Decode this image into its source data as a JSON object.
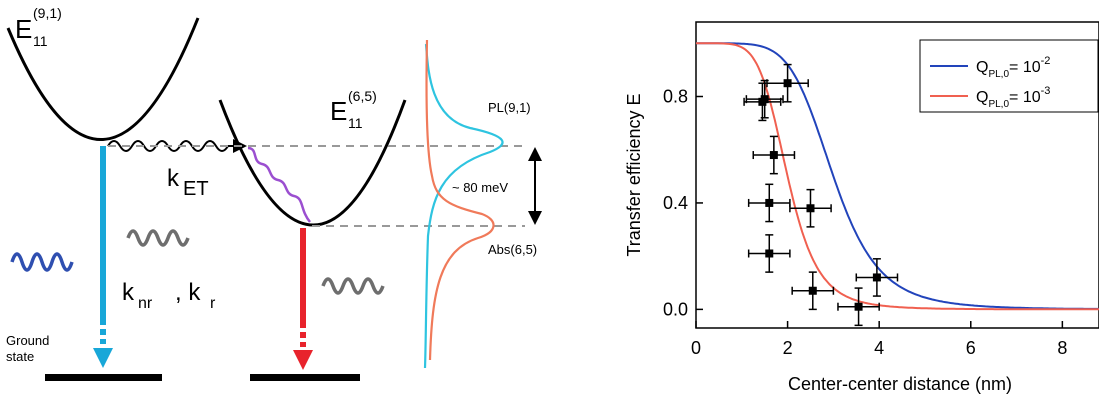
{
  "diagram": {
    "state_91": {
      "main": "E",
      "sub": "11",
      "sup": "(9,1)"
    },
    "state_65": {
      "main": "E",
      "sub": "11",
      "sup": "(6,5)"
    },
    "k_et": {
      "main": "k",
      "sub": "ET"
    },
    "k_nr": {
      "main": "k",
      "sub": "nr"
    },
    "k_r": {
      "main": ", k",
      "sub": "r"
    },
    "ground_state_line1": "Ground",
    "ground_state_line2": "state",
    "pl_label": "PL(9,1)",
    "abs_label": "Abs(6,5)",
    "energy_gap": "~ 80 meV",
    "colors": {
      "blue_wave": "#2f4fb0",
      "cyan_arrow": "#18a7d8",
      "red_arrow": "#e8232c",
      "purple_wave": "#9b4fd0",
      "gray_wave": "#6e6e6e",
      "pl_curve": "#2ec4e0",
      "abs_curve": "#f07a5a"
    }
  },
  "chart_data": {
    "type": "scatter",
    "xlabel": "Center-center distance (nm)",
    "ylabel": "Transfer efficiency E",
    "xlim": [
      0,
      8.8
    ],
    "ylim": [
      -0.07,
      1.08
    ],
    "x_ticks": [
      0,
      2,
      4,
      6,
      8
    ],
    "y_ticks": [
      0.0,
      0.4,
      0.8
    ],
    "grid": false,
    "legend_position": "top-right",
    "series": [
      {
        "name_main": "Q",
        "name_sub": "PL,0",
        "name_eq": "= 10",
        "name_exp": "-2",
        "type": "line",
        "color": "#2244bb",
        "r0": 3.0
      },
      {
        "name_main": "Q",
        "name_sub": "PL,0",
        "name_eq": "= 10",
        "name_exp": "-3",
        "type": "line",
        "color": "#f06050",
        "r0": 2.0
      }
    ],
    "points": [
      {
        "x": 2.0,
        "y": 0.85,
        "xerr": 0.45,
        "yerr": 0.07
      },
      {
        "x": 1.45,
        "y": 0.78,
        "xerr": 0.4,
        "yerr": 0.07
      },
      {
        "x": 1.5,
        "y": 0.79,
        "xerr": 0.4,
        "yerr": 0.07
      },
      {
        "x": 1.7,
        "y": 0.58,
        "xerr": 0.45,
        "yerr": 0.07
      },
      {
        "x": 1.6,
        "y": 0.4,
        "xerr": 0.45,
        "yerr": 0.07
      },
      {
        "x": 2.5,
        "y": 0.38,
        "xerr": 0.45,
        "yerr": 0.07
      },
      {
        "x": 1.6,
        "y": 0.21,
        "xerr": 0.45,
        "yerr": 0.07
      },
      {
        "x": 2.55,
        "y": 0.07,
        "xerr": 0.45,
        "yerr": 0.07
      },
      {
        "x": 3.55,
        "y": 0.01,
        "xerr": 0.45,
        "yerr": 0.07
      },
      {
        "x": 3.95,
        "y": 0.12,
        "xerr": 0.45,
        "yerr": 0.07
      }
    ]
  }
}
